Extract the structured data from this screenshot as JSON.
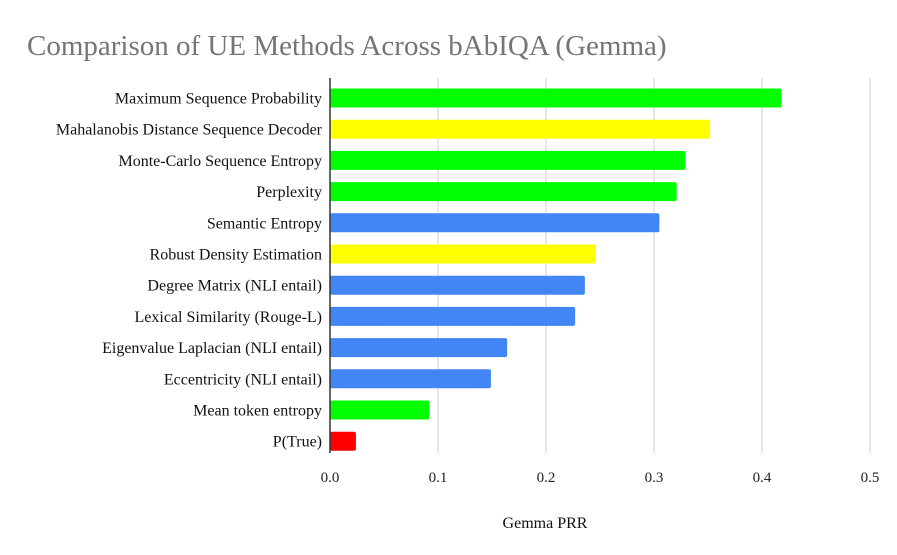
{
  "chart_data": {
    "type": "bar",
    "orientation": "horizontal",
    "title": "Comparison of UE Methods Across bAbIQA (Gemma)",
    "xlabel": "Gemma PRR",
    "ylabel": "",
    "xlim": [
      0,
      0.5
    ],
    "xticks": [
      "0.0",
      "0.1",
      "0.2",
      "0.3",
      "0.4",
      "0.5"
    ],
    "grid": true,
    "legend": "none",
    "categories": [
      "Maximum Sequence Probability",
      "Mahalanobis Distance Sequence Decoder",
      "Monte-Carlo Sequence Entropy",
      "Perplexity",
      "Semantic Entropy",
      "Robust Density Estimation",
      "Degree Matrix (NLI entail)",
      "Lexical Similarity (Rouge-L)",
      "Eigenvalue Laplacian (NLI entail)",
      "Eccentricity (NLI entail)",
      "Mean token entropy",
      "P(True)"
    ],
    "values": [
      0.418,
      0.352,
      0.329,
      0.321,
      0.305,
      0.246,
      0.236,
      0.227,
      0.164,
      0.149,
      0.092,
      0.024
    ],
    "colors": [
      "#00ff00",
      "#ffff00",
      "#00ff00",
      "#00ff00",
      "#4285f4",
      "#ffff00",
      "#4285f4",
      "#4285f4",
      "#4285f4",
      "#4285f4",
      "#00ff00",
      "#ff0000"
    ]
  }
}
